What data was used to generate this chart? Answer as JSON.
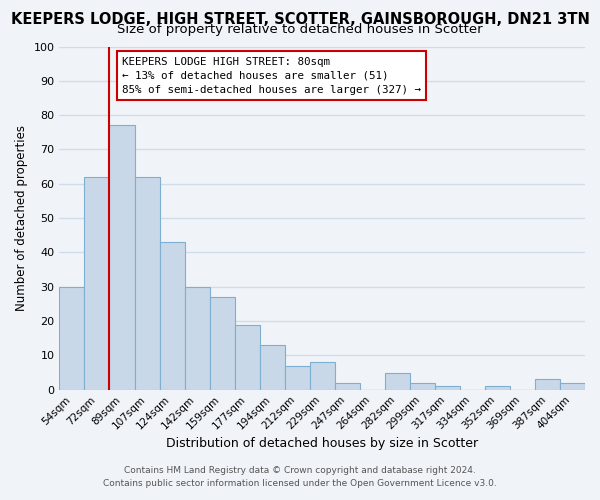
{
  "title": "KEEPERS LODGE, HIGH STREET, SCOTTER, GAINSBOROUGH, DN21 3TN",
  "subtitle": "Size of property relative to detached houses in Scotter",
  "xlabel": "Distribution of detached houses by size in Scotter",
  "ylabel": "Number of detached properties",
  "bar_labels": [
    "54sqm",
    "72sqm",
    "89sqm",
    "107sqm",
    "124sqm",
    "142sqm",
    "159sqm",
    "177sqm",
    "194sqm",
    "212sqm",
    "229sqm",
    "247sqm",
    "264sqm",
    "282sqm",
    "299sqm",
    "317sqm",
    "334sqm",
    "352sqm",
    "369sqm",
    "387sqm",
    "404sqm"
  ],
  "bar_values": [
    30,
    62,
    77,
    62,
    43,
    30,
    27,
    19,
    13,
    7,
    8,
    2,
    0,
    5,
    2,
    1,
    0,
    1,
    0,
    3,
    2
  ],
  "bar_color": "#c8d8e8",
  "bar_edge_color": "#7fafd0",
  "vline_color": "#cc0000",
  "vline_x": 1.5,
  "ylim": [
    0,
    100
  ],
  "yticks": [
    0,
    10,
    20,
    30,
    40,
    50,
    60,
    70,
    80,
    90,
    100
  ],
  "annotation_title": "KEEPERS LODGE HIGH STREET: 80sqm",
  "annotation_line1": "← 13% of detached houses are smaller (51)",
  "annotation_line2": "85% of semi-detached houses are larger (327) →",
  "annotation_box_color": "#ffffff",
  "annotation_box_edge": "#cc0000",
  "footer_line1": "Contains HM Land Registry data © Crown copyright and database right 2024.",
  "footer_line2": "Contains public sector information licensed under the Open Government Licence v3.0.",
  "background_color": "#f0f4f8",
  "grid_color": "#d0dce8",
  "title_fontsize": 10.5,
  "subtitle_fontsize": 9.5
}
